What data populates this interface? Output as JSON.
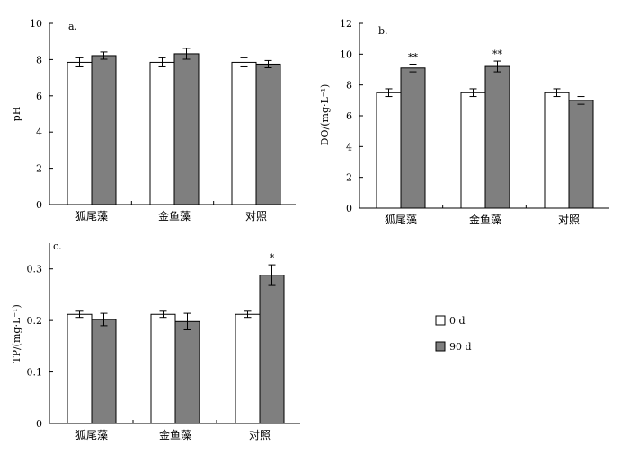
{
  "chart_data": [
    {
      "type": "bar",
      "panel": "a.",
      "ylabel": "pH",
      "ylim": [
        0,
        10
      ],
      "yticks": [
        "0",
        "2",
        "4",
        "6",
        "8",
        "10"
      ],
      "categories": [
        "狐尾藻",
        "金鱼藻",
        "对照"
      ],
      "series": [
        {
          "name": "0 d",
          "values": [
            7.85,
            7.85,
            7.85
          ],
          "errors": [
            0.25,
            0.25,
            0.25
          ]
        },
        {
          "name": "90 d",
          "values": [
            8.22,
            8.32,
            7.75
          ],
          "errors": [
            0.2,
            0.3,
            0.2
          ]
        }
      ],
      "annotations": [
        "",
        "",
        ""
      ]
    },
    {
      "type": "bar",
      "panel": "b.",
      "ylabel": "DO/(mg·L⁻¹)",
      "ylim": [
        0,
        12
      ],
      "yticks": [
        "0",
        "2",
        "4",
        "6",
        "8",
        "10",
        "12"
      ],
      "categories": [
        "狐尾藻",
        "金鱼藻",
        "对照"
      ],
      "series": [
        {
          "name": "0 d",
          "values": [
            7.5,
            7.5,
            7.5
          ],
          "errors": [
            0.25,
            0.25,
            0.25
          ]
        },
        {
          "name": "90 d",
          "values": [
            9.1,
            9.2,
            7.0
          ],
          "errors": [
            0.25,
            0.35,
            0.25
          ]
        }
      ],
      "annotations": [
        "**",
        "**",
        ""
      ]
    },
    {
      "type": "bar",
      "panel": "c.",
      "ylabel": "TP/(mg·L⁻¹)",
      "ylim": [
        0,
        0.35
      ],
      "yticks": [
        "0",
        "0.1",
        "0.2",
        "0.3"
      ],
      "categories": [
        "狐尾藻",
        "金鱼藻",
        "对照"
      ],
      "series": [
        {
          "name": "0 d",
          "values": [
            0.212,
            0.212,
            0.212
          ],
          "errors": [
            0.006,
            0.006,
            0.006
          ]
        },
        {
          "name": "90 d",
          "values": [
            0.202,
            0.198,
            0.288
          ],
          "errors": [
            0.012,
            0.016,
            0.02
          ]
        }
      ],
      "annotations": [
        "",
        "",
        "*"
      ]
    }
  ],
  "legend": [
    {
      "label": "0 d",
      "color": "#ffffff"
    },
    {
      "label": "90 d",
      "color": "#7f7f7f"
    }
  ]
}
